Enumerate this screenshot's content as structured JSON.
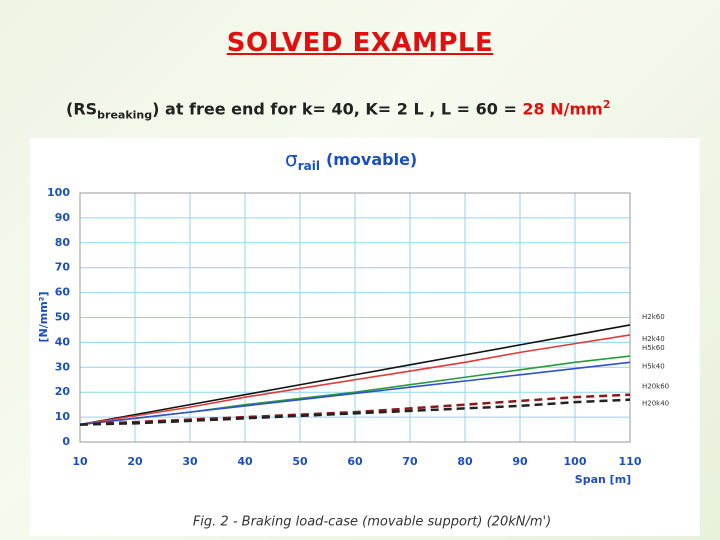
{
  "header": {
    "title": "SOLVED EXAMPLE",
    "subtitle": {
      "prefix": "(RS",
      "subscript": "breaking",
      "middle": ") at free end for k= 40, K= 2 L , L = 60 = ",
      "result": "28 N/mm",
      "superscript": "2"
    }
  },
  "chart_data": {
    "type": "line",
    "title": {
      "symbol": "σ",
      "subscript": "rail",
      "text": "(movable)"
    },
    "x_label": "Span [m]",
    "y_label": "[N/mm²]",
    "caption": "Fig. 2 - Braking load-case (movable support) (20kN/m')",
    "x": [
      10,
      20,
      30,
      40,
      50,
      60,
      70,
      80,
      90,
      100,
      110
    ],
    "series": [
      {
        "name": "H2k60",
        "color": "#111111",
        "dashed": false,
        "values": [
          7,
          11,
          15,
          19,
          23,
          27,
          31,
          35,
          39,
          43,
          47
        ]
      },
      {
        "name": "H2k40",
        "color": "#e03a3a",
        "dashed": false,
        "values": [
          7,
          10.5,
          14,
          18,
          21.5,
          25,
          28.5,
          32,
          36,
          39.5,
          43
        ]
      },
      {
        "name": "H5k60",
        "color": "#2a9a3a",
        "dashed": false,
        "values": [
          7,
          9.5,
          12,
          15,
          17.5,
          20,
          23,
          26,
          29,
          32,
          34.5
        ]
      },
      {
        "name": "H5k40",
        "color": "#3050d0",
        "dashed": false,
        "values": [
          7,
          9.5,
          12,
          14.5,
          17,
          19.5,
          22,
          24.5,
          27,
          29.5,
          32
        ]
      },
      {
        "name": "H20k60",
        "color": "#8b1a1a",
        "dashed": true,
        "values": [
          7,
          8,
          9,
          10,
          11,
          12,
          13.5,
          15,
          16.5,
          18,
          19
        ]
      },
      {
        "name": "H20k40",
        "color": "#222222",
        "dashed": true,
        "values": [
          7,
          7.5,
          8.5,
          9.5,
          10.5,
          11.5,
          12.5,
          13.5,
          14.5,
          16,
          17
        ]
      }
    ],
    "xlim": [
      10,
      110
    ],
    "ylim": [
      0,
      100
    ],
    "xticks": [
      10,
      20,
      30,
      40,
      50,
      60,
      70,
      80,
      90,
      100,
      110
    ],
    "yticks": [
      0,
      10,
      20,
      30,
      40,
      50,
      60,
      70,
      80,
      90,
      100
    ],
    "grid": true
  }
}
